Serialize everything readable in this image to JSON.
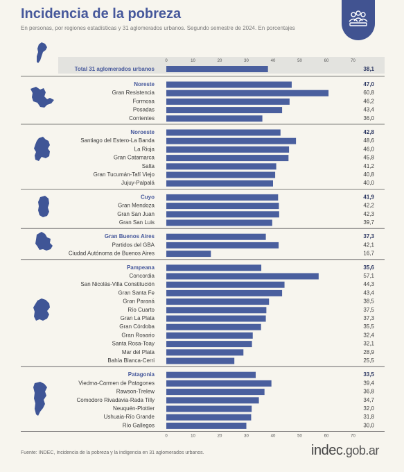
{
  "header": {
    "title": "Incidencia de la pobreza",
    "subtitle": "En personas, por regiones estadísticas y 31 aglomerados urbanos. Segundo semestre de 2024. En porcentajes"
  },
  "footer": {
    "source": "Fuente: INDEC, Incidencia de la pobreza y la indigencia en 31 aglomerados urbanos.",
    "logo_main": "indec",
    "logo_suffix": ".gob.ar"
  },
  "colors": {
    "bar": "#4a5f9e",
    "title": "#46589b",
    "total_band": "#e3e3df",
    "map": "#3f5596"
  },
  "chart_data": {
    "type": "bar",
    "orientation": "horizontal",
    "xlim": [
      0,
      70
    ],
    "xticks": [
      0,
      10,
      20,
      30,
      40,
      50,
      60,
      70
    ],
    "total": {
      "label": "Total 31 aglomerados urbanos",
      "value": 38.1,
      "display": "38,1"
    },
    "groups": [
      {
        "region": "Noreste",
        "value": 47.0,
        "display": "47,0",
        "map_icon": "noreste-map-icon",
        "items": [
          {
            "label": "Gran Resistencia",
            "value": 60.8,
            "display": "60,8"
          },
          {
            "label": "Formosa",
            "value": 46.2,
            "display": "46,2"
          },
          {
            "label": "Posadas",
            "value": 43.4,
            "display": "43,4"
          },
          {
            "label": "Corrientes",
            "value": 36.0,
            "display": "36,0"
          }
        ]
      },
      {
        "region": "Noroeste",
        "value": 42.8,
        "display": "42,8",
        "map_icon": "noroeste-map-icon",
        "items": [
          {
            "label": "Santiago del Estero-La Banda",
            "value": 48.6,
            "display": "48,6"
          },
          {
            "label": "La Rioja",
            "value": 46.0,
            "display": "46,0"
          },
          {
            "label": "Gran Catamarca",
            "value": 45.8,
            "display": "45,8"
          },
          {
            "label": "Salta",
            "value": 41.2,
            "display": "41,2"
          },
          {
            "label": "Gran Tucumán-Tafí Viejo",
            "value": 40.8,
            "display": "40,8"
          },
          {
            "label": "Jujuy-Palpalá",
            "value": 40.0,
            "display": "40,0"
          }
        ]
      },
      {
        "region": "Cuyo",
        "value": 41.9,
        "display": "41,9",
        "map_icon": "cuyo-map-icon",
        "items": [
          {
            "label": "Gran Mendoza",
            "value": 42.2,
            "display": "42,2"
          },
          {
            "label": "Gran San Juan",
            "value": 42.3,
            "display": "42,3"
          },
          {
            "label": "Gran San Luis",
            "value": 39.7,
            "display": "39,7"
          }
        ]
      },
      {
        "region": "Gran Buenos Aires",
        "value": 37.3,
        "display": "37,3",
        "map_icon": "gba-map-icon",
        "items": [
          {
            "label": "Partidos del GBA",
            "value": 42.1,
            "display": "42,1"
          },
          {
            "label": "Ciudad Autónoma de Buenos Aires",
            "value": 16.7,
            "display": "16,7"
          }
        ]
      },
      {
        "region": "Pampeana",
        "value": 35.6,
        "display": "35,6",
        "map_icon": "pampeana-map-icon",
        "items": [
          {
            "label": "Concordia",
            "value": 57.1,
            "display": "57,1"
          },
          {
            "label": "San Nicolás-Villa Constitución",
            "value": 44.3,
            "display": "44,3"
          },
          {
            "label": "Gran Santa Fe",
            "value": 43.4,
            "display": "43,4"
          },
          {
            "label": "Gran Paraná",
            "value": 38.5,
            "display": "38,5"
          },
          {
            "label": "Río Cuarto",
            "value": 37.5,
            "display": "37,5"
          },
          {
            "label": "Gran La Plata",
            "value": 37.3,
            "display": "37,3"
          },
          {
            "label": "Gran Córdoba",
            "value": 35.5,
            "display": "35,5"
          },
          {
            "label": "Gran Rosario",
            "value": 32.4,
            "display": "32,4"
          },
          {
            "label": "Santa Rosa-Toay",
            "value": 32.1,
            "display": "32,1"
          },
          {
            "label": "Mar del Plata",
            "value": 28.9,
            "display": "28,9"
          },
          {
            "label": "Bahía Blanca-Cerri",
            "value": 25.5,
            "display": "25,5"
          }
        ]
      },
      {
        "region": "Patagonia",
        "value": 33.5,
        "display": "33,5",
        "map_icon": "patagonia-map-icon",
        "items": [
          {
            "label": "Viedma-Carmen de Patagones",
            "value": 39.4,
            "display": "39,4"
          },
          {
            "label": "Rawson-Trelew",
            "value": 36.8,
            "display": "36,8"
          },
          {
            "label": "Comodoro Rivadavia-Rada Tilly",
            "value": 34.7,
            "display": "34,7"
          },
          {
            "label": "Neuquén-Plottier",
            "value": 32.0,
            "display": "32,0"
          },
          {
            "label": "Ushuaia-Río Grande",
            "value": 31.8,
            "display": "31,8"
          },
          {
            "label": "Río Gallegos",
            "value": 30.0,
            "display": "30,0"
          }
        ]
      }
    ]
  }
}
